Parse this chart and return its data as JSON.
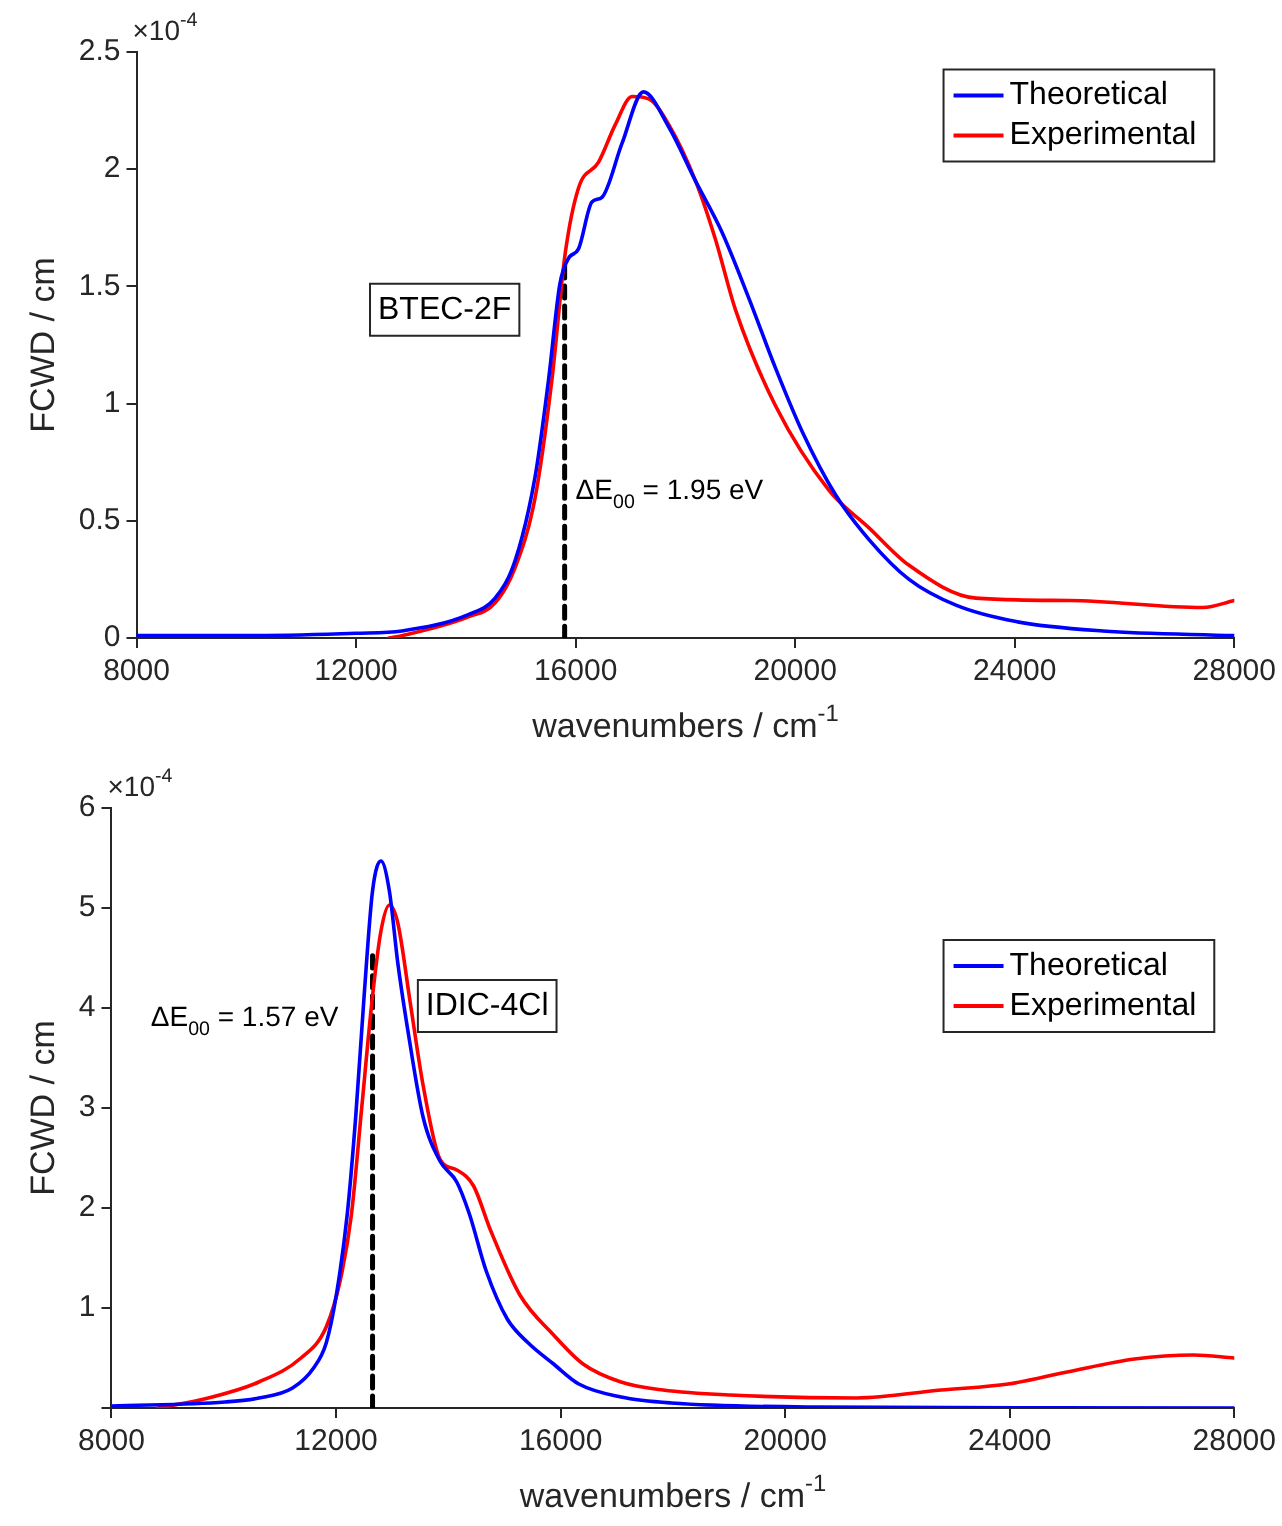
{
  "chart_data": [
    {
      "type": "line",
      "xlabel": "wavenumbers / cm$^{-1}$",
      "ylabel": "FCWD / cm",
      "xlim": [
        8000,
        28000
      ],
      "xticks": [
        8000,
        12000,
        16000,
        20000,
        24000,
        28000
      ],
      "ylim": [
        0,
        2.5
      ],
      "yticks": [
        0,
        0.5,
        1,
        1.5,
        2,
        2.5
      ],
      "grid": false,
      "legend": "top right",
      "marker": "none",
      "line_style": "solid",
      "annotations": [
        "×10$^{-4}$",
        "BTEC-2F",
        "ΔE$_{00}$ = 1.95 eV"
      ],
      "series": [
        {
          "name": "Theoretical",
          "color": "#0000ff",
          "x": [
            8000,
            10000,
            12000,
            12836,
            14045,
            14533,
            14898,
            15263,
            15506,
            15713,
            15870,
            16053,
            16297,
            16480,
            16845,
            17234,
            17697,
            18184,
            18669,
            19155,
            19644,
            20129,
            20738,
            21345,
            22075,
            22929,
            24024,
            25604,
            28000
          ],
          "values": [
            0.01,
            0.01,
            0.02,
            0.03,
            0.1,
            0.17,
            0.33,
            0.69,
            1.1,
            1.51,
            1.62,
            1.66,
            1.86,
            1.88,
            2.11,
            2.33,
            2.18,
            1.95,
            1.73,
            1.45,
            1.15,
            0.88,
            0.61,
            0.42,
            0.25,
            0.14,
            0.07,
            0.03,
            0.01
          ]
        },
        {
          "name": "Experimental",
          "color": "#ff0000",
          "x": [
            12600,
            12836,
            14045,
            14533,
            14898,
            15263,
            15567,
            15810,
            16053,
            16418,
            16723,
            17027,
            17331,
            17697,
            18184,
            18548,
            18913,
            19644,
            20617,
            21345,
            22075,
            23293,
            25000,
            27430,
            28000
          ],
          "values": [
            0,
            0.01,
            0.09,
            0.15,
            0.3,
            0.6,
            1.1,
            1.64,
            1.92,
            2.03,
            2.19,
            2.31,
            2.3,
            2.19,
            1.95,
            1.7,
            1.4,
            0.99,
            0.63,
            0.47,
            0.31,
            0.17,
            0.16,
            0.13,
            0.16
          ]
        },
        {
          "type": "line",
          "color": "#000000",
          "line_style": "dashed",
          "x": [
            15800,
            15800
          ],
          "values": [
            0,
            1.6
          ]
        }
      ]
    },
    {
      "type": "line",
      "xlabel": "wavenumbers / cm$^{-1}$",
      "ylabel": "FCWD / cm",
      "xlim": [
        8000,
        28000
      ],
      "xticks": [
        8000,
        12000,
        16000,
        20000,
        24000,
        28000
      ],
      "ylim": [
        0,
        6
      ],
      "yticks": [
        {
          "value": 0,
          "label": null
        },
        1,
        2,
        3,
        4,
        5,
        6
      ],
      "grid": false,
      "legend": "top right",
      "marker": "none",
      "line_style": "solid",
      "annotations": [
        "×10$^{-4}$",
        "IDIC-4Cl",
        "ΔE$_{00}$ = 1.57 eV"
      ],
      "series": [
        {
          "name": "Theoretical",
          "color": "#0000ff",
          "x": [
            8000,
            10025,
            10625,
            11225,
            11600,
            11825,
            12005,
            12200,
            12350,
            12500,
            12650,
            12800,
            12950,
            13100,
            13295,
            13550,
            13850,
            14150,
            14375,
            14675,
            15050,
            15425,
            15875,
            16325,
            17075,
            17975,
            20525,
            28000
          ],
          "values": [
            0.02,
            0.06,
            0.1,
            0.2,
            0.4,
            0.65,
            1.13,
            1.94,
            2.91,
            4.12,
            5.17,
            5.47,
            5.17,
            4.45,
            3.72,
            2.91,
            2.47,
            2.26,
            1.94,
            1.37,
            0.89,
            0.65,
            0.44,
            0.24,
            0.11,
            0.05,
            0.01,
            0
          ]
        },
        {
          "name": "Experimental",
          "color": "#ff0000",
          "x": [
            8825,
            9725,
            10625,
            11375,
            11825,
            12080,
            12275,
            12455,
            12650,
            12800,
            12950,
            13100,
            13325,
            13550,
            13850,
            14150,
            14450,
            14750,
            15275,
            15875,
            16400,
            17075,
            17825,
            19025,
            21275,
            22775,
            23975,
            25025,
            26225,
            27275,
            28000
          ],
          "values": [
            0,
            0.1,
            0.26,
            0.5,
            0.81,
            1.29,
            1.94,
            2.99,
            4.12,
            4.77,
            5.03,
            4.85,
            4.04,
            3.23,
            2.49,
            2.38,
            2.22,
            1.78,
            1.13,
            0.73,
            0.44,
            0.26,
            0.18,
            0.13,
            0.1,
            0.18,
            0.24,
            0.36,
            0.49,
            0.53,
            0.5
          ]
        },
        {
          "type": "line",
          "color": "#000000",
          "line_style": "dashed",
          "x": [
            12650,
            12650
          ],
          "values": [
            0,
            4.6
          ]
        }
      ]
    }
  ]
}
